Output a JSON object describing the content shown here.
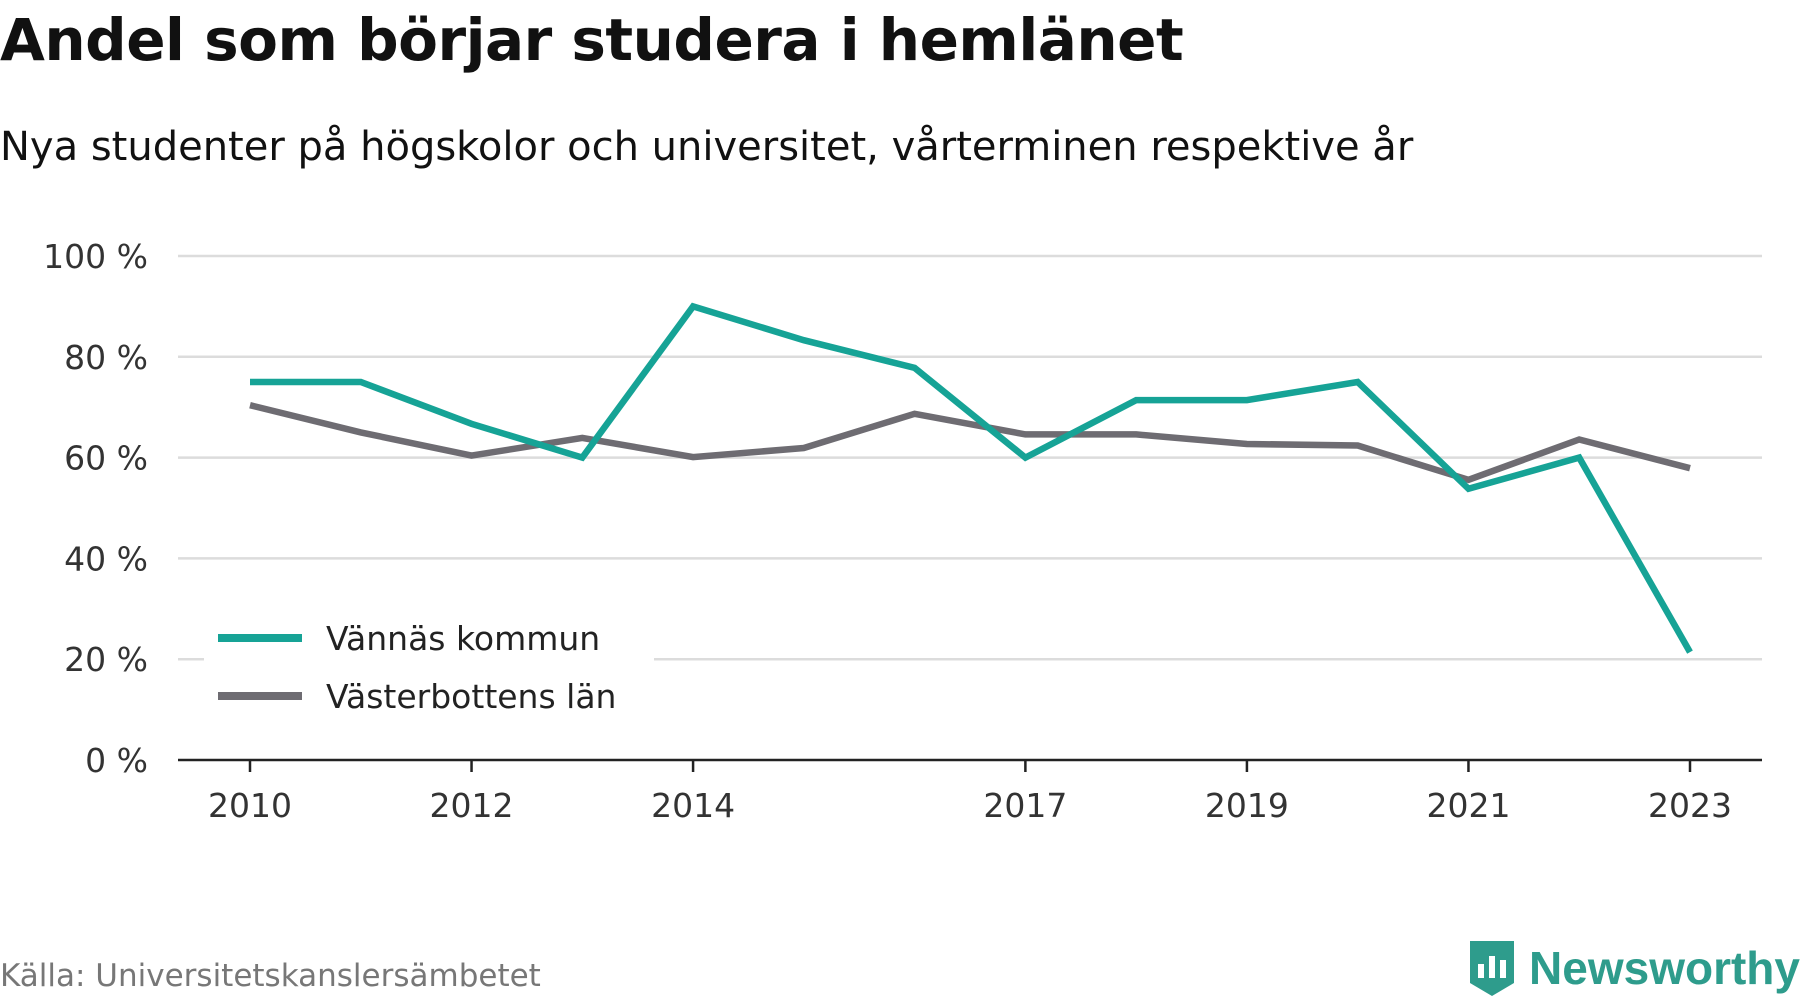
{
  "title": "Andel som börjar studera i hemlänet",
  "subtitle": "Nya studenter på högskolor och universitet, vårterminen respektive år",
  "source": "Källa: Universitetskanslersämbetet",
  "brand": {
    "name": "Newsworthy",
    "icon": "bar-chart-shield-icon",
    "color": "#2e9c8c"
  },
  "chart_data": {
    "type": "line",
    "x": [
      2010,
      2011,
      2012,
      2013,
      2014,
      2015,
      2016,
      2017,
      2018,
      2019,
      2020,
      2021,
      2022,
      2023
    ],
    "x_tick_labels": [
      "2010",
      "2012",
      "2014",
      "2017",
      "2019",
      "2021",
      "2023"
    ],
    "y_tick_labels": [
      "0 %",
      "20 %",
      "40 %",
      "60 %",
      "80 %",
      "100 %"
    ],
    "ylim": [
      0,
      100
    ],
    "y_ticks": [
      0,
      20,
      40,
      60,
      80,
      100
    ],
    "grid": true,
    "legend_position": "bottom-left",
    "series": [
      {
        "name": "Vännäs kommun",
        "color": "#16a396",
        "values": [
          75,
          75,
          66.7,
          60,
          90,
          83.3,
          77.8,
          60,
          71.4,
          71.4,
          75,
          53.8,
          60,
          21.4
        ]
      },
      {
        "name": "Västerbottens län",
        "color": "#6e6c72",
        "values": [
          70.4,
          65,
          60.4,
          63.9,
          60.1,
          61.9,
          68.7,
          64.6,
          64.6,
          62.7,
          62.4,
          55.6,
          63.6,
          57.9
        ]
      }
    ]
  }
}
